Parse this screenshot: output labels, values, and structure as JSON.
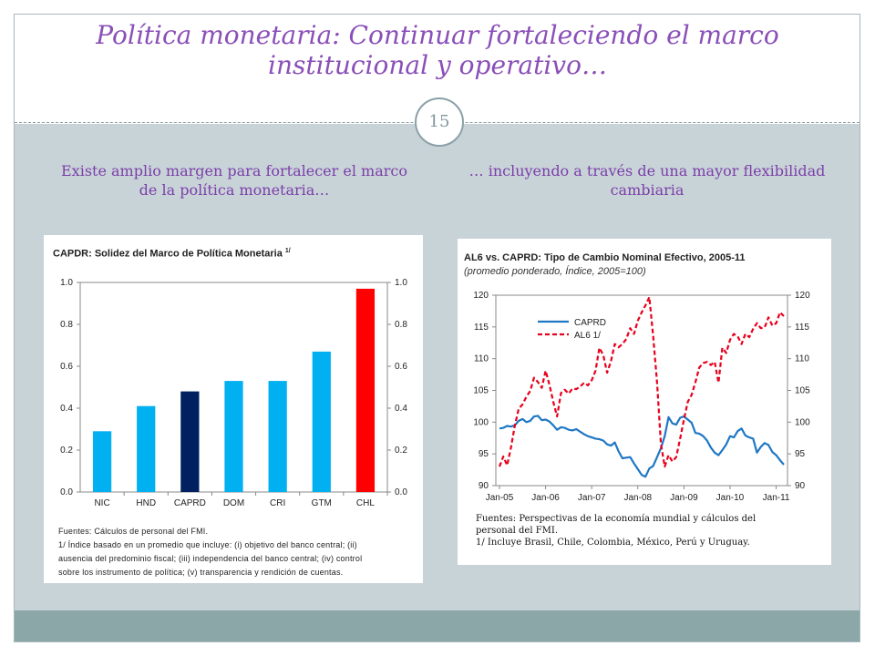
{
  "slide": {
    "title": "Política monetaria: Continuar fortaleciendo el marco institucional y operativo…",
    "page_number": "15",
    "left_subtitle": "Existe amplio margen para fortalecer el marco de la política monetaria…",
    "right_subtitle": "… incluyendo a través de una mayor flexibilidad cambiaria"
  },
  "left_chart": {
    "title": "CAPDR: Solidez del Marco de Política Monetaria",
    "title_sup": "1/",
    "notes": [
      "Fuentes: Cálculos de personal del FMI.",
      "1/ Índice basado en un promedio que incluye: (i) objetivo del banco central; (ii)",
      "ausencia del predominio fiscal; (iii) independencia del banco central; (iv) control",
      "sobre los instrumento de política; (v) transparencia y rendición de cuentas."
    ]
  },
  "right_chart": {
    "title": "AL6 vs. CAPRD: Tipo de Cambio Nominal Efectivo, 2005-11",
    "subtitle": "(promedio ponderado, Índice, 2005=100)",
    "notes": [
      "Fuentes: Perspectivas de la economía mundial y cálculos del",
      "personal del FMI.",
      "1/ Incluye Brasil, Chile, Colombia, México, Perú y Uruguay."
    ]
  },
  "chart_data": [
    {
      "type": "bar",
      "title": "CAPDR: Solidez del Marco de Política Monetaria 1/",
      "categories": [
        "NIC",
        "HND",
        "CAPRD",
        "DOM",
        "CRI",
        "GTM",
        "CHL"
      ],
      "values": [
        0.29,
        0.41,
        0.48,
        0.53,
        0.53,
        0.67,
        0.97
      ],
      "colors": [
        "#00b0f0",
        "#00b0f0",
        "#002060",
        "#00b0f0",
        "#00b0f0",
        "#00b0f0",
        "#ff0000"
      ],
      "ylim": [
        0,
        1.0
      ],
      "yticks": [
        "0.0",
        "0.2",
        "0.4",
        "0.6",
        "0.8",
        "1.0"
      ],
      "secondary_axis": true,
      "grid": false
    },
    {
      "type": "line",
      "title": "AL6 vs. CAPRD: Tipo de Cambio Nominal Efectivo, 2005-11",
      "subtitle": "(promedio ponderado, Índice, 2005=100)",
      "x_start": "Jan-05",
      "x_frequency": "monthly",
      "xticks": [
        "Jan-05",
        "Jan-06",
        "Jan-07",
        "Jan-08",
        "Jan-09",
        "Jan-10",
        "Jan-11"
      ],
      "ylim": [
        90,
        120
      ],
      "yticks": [
        "90",
        "95",
        "100",
        "105",
        "110",
        "115",
        "120"
      ],
      "secondary_axis": true,
      "legend_position": "top-left",
      "series": [
        {
          "name": "CAPRD",
          "color": "#1f77c4",
          "style": "solid",
          "values": [
            99.0,
            99.1,
            99.4,
            99.3,
            99.5,
            100.2,
            100.5,
            100.0,
            100.2,
            100.9,
            101.0,
            100.3,
            100.4,
            100.1,
            99.5,
            98.8,
            99.2,
            99.1,
            98.8,
            98.7,
            98.9,
            98.5,
            98.1,
            97.8,
            97.6,
            97.4,
            97.3,
            97.1,
            96.5,
            96.3,
            96.8,
            95.4,
            94.3,
            94.4,
            94.5,
            93.5,
            92.6,
            91.7,
            91.4,
            92.7,
            93.1,
            94.5,
            95.9,
            97.8,
            100.8,
            99.8,
            99.6,
            100.7,
            100.9,
            100.4,
            99.9,
            98.3,
            98.2,
            97.8,
            97.1,
            96.0,
            95.2,
            94.8,
            95.6,
            96.5,
            97.8,
            97.6,
            98.6,
            99.0,
            97.9,
            97.6,
            97.4,
            95.2,
            96.1,
            96.7,
            96.4,
            95.3,
            94.8,
            94.0,
            93.3
          ]
        },
        {
          "name": "AL6 1/",
          "color": "#e8001c",
          "style": "dashed",
          "values": [
            93.0,
            94.6,
            93.2,
            96.0,
            99.5,
            102.1,
            102.8,
            104.0,
            104.9,
            107.0,
            106.3,
            105.4,
            108.1,
            105.9,
            103.2,
            100.9,
            104.6,
            105.1,
            104.5,
            105.3,
            105.2,
            105.6,
            106.2,
            105.8,
            106.6,
            108.1,
            111.7,
            110.6,
            107.8,
            109.6,
            112.3,
            111.8,
            112.3,
            113.1,
            114.8,
            113.9,
            116.0,
            117.3,
            118.4,
            119.7,
            113.6,
            106.2,
            96.6,
            93.0,
            94.8,
            93.8,
            94.5,
            97.4,
            100.4,
            103.2,
            104.3,
            106.3,
            108.6,
            109.3,
            109.5,
            109.0,
            109.5,
            106.2,
            111.7,
            110.9,
            113.0,
            113.9,
            113.5,
            112.3,
            113.9,
            113.4,
            114.7,
            115.6,
            114.8,
            114.9,
            116.5,
            115.2,
            115.6,
            117.3,
            116.7
          ]
        }
      ]
    }
  ]
}
